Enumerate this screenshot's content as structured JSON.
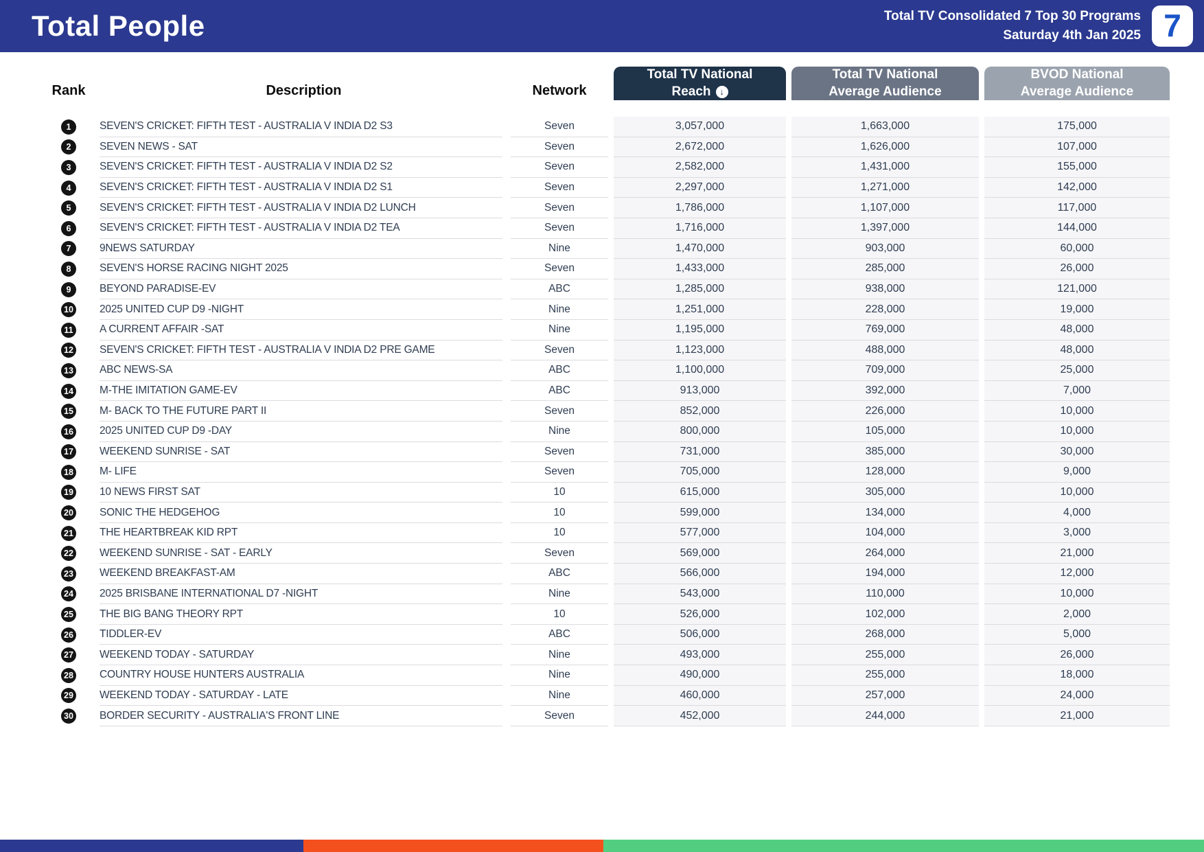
{
  "header": {
    "title": "Total People",
    "subtitle_line1": "Total TV Consolidated 7 Top 30 Programs",
    "subtitle_line2": "Saturday 4th Jan 2025",
    "logo_glyph": "7",
    "banner_color": "#2b3990",
    "logo_glyph_color": "#1b54c8"
  },
  "table": {
    "columns": {
      "rank_label": "Rank",
      "description_label": "Description",
      "network_label": "Network",
      "reach": {
        "line1": "Total TV National",
        "line2": "Reach",
        "color": "#1f3349"
      },
      "avg": {
        "line1": "Total TV National",
        "line2": "Average Audience",
        "color": "#6b7485"
      },
      "bvod": {
        "line1": "BVOD National",
        "line2": "Average Audience",
        "color": "#9ba3ae"
      }
    },
    "sort_icon_glyph": "↓",
    "rows": [
      {
        "rank": "1",
        "description": "SEVEN'S CRICKET: FIFTH TEST - AUSTRALIA V INDIA D2 S3",
        "network": "Seven",
        "reach": "3,057,000",
        "avg": "1,663,000",
        "bvod": "175,000"
      },
      {
        "rank": "2",
        "description": "SEVEN NEWS - SAT",
        "network": "Seven",
        "reach": "2,672,000",
        "avg": "1,626,000",
        "bvod": "107,000"
      },
      {
        "rank": "3",
        "description": "SEVEN'S CRICKET: FIFTH TEST - AUSTRALIA V INDIA D2 S2",
        "network": "Seven",
        "reach": "2,582,000",
        "avg": "1,431,000",
        "bvod": "155,000"
      },
      {
        "rank": "4",
        "description": "SEVEN'S CRICKET: FIFTH TEST - AUSTRALIA V INDIA D2 S1",
        "network": "Seven",
        "reach": "2,297,000",
        "avg": "1,271,000",
        "bvod": "142,000"
      },
      {
        "rank": "5",
        "description": "SEVEN'S CRICKET: FIFTH TEST - AUSTRALIA V INDIA D2 LUNCH",
        "network": "Seven",
        "reach": "1,786,000",
        "avg": "1,107,000",
        "bvod": "117,000"
      },
      {
        "rank": "6",
        "description": "SEVEN'S CRICKET: FIFTH TEST - AUSTRALIA V INDIA D2 TEA",
        "network": "Seven",
        "reach": "1,716,000",
        "avg": "1,397,000",
        "bvod": "144,000"
      },
      {
        "rank": "7",
        "description": "9NEWS SATURDAY",
        "network": "Nine",
        "reach": "1,470,000",
        "avg": "903,000",
        "bvod": "60,000"
      },
      {
        "rank": "8",
        "description": "SEVEN'S HORSE RACING NIGHT 2025",
        "network": "Seven",
        "reach": "1,433,000",
        "avg": "285,000",
        "bvod": "26,000"
      },
      {
        "rank": "9",
        "description": "BEYOND PARADISE-EV",
        "network": "ABC",
        "reach": "1,285,000",
        "avg": "938,000",
        "bvod": "121,000"
      },
      {
        "rank": "10",
        "description": "2025 UNITED CUP D9 -NIGHT",
        "network": "Nine",
        "reach": "1,251,000",
        "avg": "228,000",
        "bvod": "19,000"
      },
      {
        "rank": "11",
        "description": "A CURRENT AFFAIR -SAT",
        "network": "Nine",
        "reach": "1,195,000",
        "avg": "769,000",
        "bvod": "48,000"
      },
      {
        "rank": "12",
        "description": "SEVEN'S CRICKET: FIFTH TEST - AUSTRALIA V INDIA D2 PRE GAME",
        "network": "Seven",
        "reach": "1,123,000",
        "avg": "488,000",
        "bvod": "48,000"
      },
      {
        "rank": "13",
        "description": "ABC NEWS-SA",
        "network": "ABC",
        "reach": "1,100,000",
        "avg": "709,000",
        "bvod": "25,000"
      },
      {
        "rank": "14",
        "description": "M-THE IMITATION GAME-EV",
        "network": "ABC",
        "reach": "913,000",
        "avg": "392,000",
        "bvod": "7,000"
      },
      {
        "rank": "15",
        "description": "M- BACK TO THE FUTURE PART II",
        "network": "Seven",
        "reach": "852,000",
        "avg": "226,000",
        "bvod": "10,000"
      },
      {
        "rank": "16",
        "description": "2025 UNITED CUP D9 -DAY",
        "network": "Nine",
        "reach": "800,000",
        "avg": "105,000",
        "bvod": "10,000"
      },
      {
        "rank": "17",
        "description": "WEEKEND SUNRISE - SAT",
        "network": "Seven",
        "reach": "731,000",
        "avg": "385,000",
        "bvod": "30,000"
      },
      {
        "rank": "18",
        "description": "M- LIFE",
        "network": "Seven",
        "reach": "705,000",
        "avg": "128,000",
        "bvod": "9,000"
      },
      {
        "rank": "19",
        "description": "10 NEWS FIRST SAT",
        "network": "10",
        "reach": "615,000",
        "avg": "305,000",
        "bvod": "10,000"
      },
      {
        "rank": "20",
        "description": "SONIC THE HEDGEHOG",
        "network": "10",
        "reach": "599,000",
        "avg": "134,000",
        "bvod": "4,000"
      },
      {
        "rank": "21",
        "description": "THE HEARTBREAK KID RPT",
        "network": "10",
        "reach": "577,000",
        "avg": "104,000",
        "bvod": "3,000"
      },
      {
        "rank": "22",
        "description": "WEEKEND SUNRISE - SAT - EARLY",
        "network": "Seven",
        "reach": "569,000",
        "avg": "264,000",
        "bvod": "21,000"
      },
      {
        "rank": "23",
        "description": "WEEKEND BREAKFAST-AM",
        "network": "ABC",
        "reach": "566,000",
        "avg": "194,000",
        "bvod": "12,000"
      },
      {
        "rank": "24",
        "description": "2025 BRISBANE INTERNATIONAL D7 -NIGHT",
        "network": "Nine",
        "reach": "543,000",
        "avg": "110,000",
        "bvod": "10,000"
      },
      {
        "rank": "25",
        "description": "THE BIG BANG THEORY RPT",
        "network": "10",
        "reach": "526,000",
        "avg": "102,000",
        "bvod": "2,000"
      },
      {
        "rank": "26",
        "description": "TIDDLER-EV",
        "network": "ABC",
        "reach": "506,000",
        "avg": "268,000",
        "bvod": "5,000"
      },
      {
        "rank": "27",
        "description": "WEEKEND TODAY - SATURDAY",
        "network": "Nine",
        "reach": "493,000",
        "avg": "255,000",
        "bvod": "26,000"
      },
      {
        "rank": "28",
        "description": "COUNTRY HOUSE HUNTERS AUSTRALIA",
        "network": "Nine",
        "reach": "490,000",
        "avg": "255,000",
        "bvod": "18,000"
      },
      {
        "rank": "29",
        "description": "WEEKEND TODAY - SATURDAY - LATE",
        "network": "Nine",
        "reach": "460,000",
        "avg": "257,000",
        "bvod": "24,000"
      },
      {
        "rank": "30",
        "description": "BORDER SECURITY - AUSTRALIA'S FRONT LINE",
        "network": "Seven",
        "reach": "452,000",
        "avg": "244,000",
        "bvod": "21,000"
      }
    ]
  },
  "footer": {
    "segments": [
      {
        "color": "#2b3990",
        "width_pct": 25.2
      },
      {
        "color": "#f4501e",
        "width_pct": 24.9
      },
      {
        "color": "#53ce80",
        "width_pct": 49.9
      }
    ]
  }
}
